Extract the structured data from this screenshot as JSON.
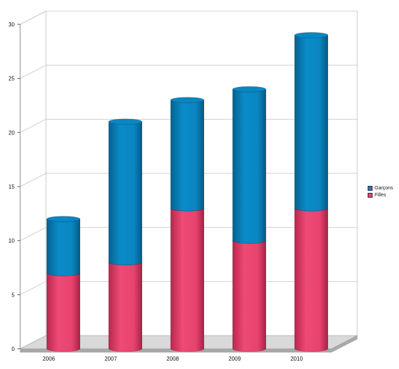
{
  "chart_data": {
    "type": "bar",
    "stacked": true,
    "style": "3d-cylinder",
    "categories": [
      "2006",
      "2007",
      "2008",
      "2009",
      "2010"
    ],
    "series": [
      {
        "name": "Filles",
        "color": "#e8436f",
        "values": [
          7,
          8,
          13,
          10,
          13
        ]
      },
      {
        "name": "Garçons",
        "color": "#0a86c2",
        "values": [
          5,
          13,
          10,
          14,
          16
        ]
      }
    ],
    "ylim": [
      0,
      30
    ],
    "yticks": [
      "0",
      "5",
      "10",
      "15",
      "20",
      "25",
      "30"
    ],
    "grid": true,
    "legend_position": "right"
  },
  "legend": {
    "items": [
      {
        "label": "Garçons",
        "color": "#0a86c2"
      },
      {
        "label": "Filles",
        "color": "#e8436f"
      }
    ]
  }
}
